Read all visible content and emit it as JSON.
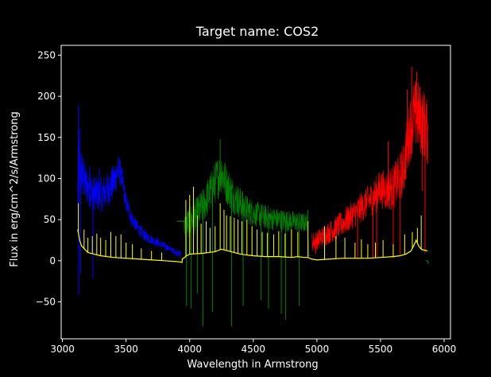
{
  "chart_data": {
    "type": "line",
    "title": "Target name: COS2",
    "xlabel": "Wavelength in Armstrong",
    "ylabel": "Flux in erg/cm^2/s/Armstrong",
    "xlim": [
      2990,
      6050
    ],
    "ylim": [
      -95,
      262
    ],
    "grid": false,
    "legend": "none",
    "xticks": [
      3000,
      3500,
      4000,
      4500,
      5000,
      5500,
      6000
    ],
    "yticks": [
      -50,
      0,
      50,
      100,
      150,
      200,
      250
    ],
    "background": "#000000",
    "axes_color": "#ffffff",
    "series": [
      {
        "color": "#0000ff",
        "style": "noisy",
        "x": [
          3120,
          3130,
          3150,
          3200,
          3250,
          3300,
          3350,
          3400,
          3430,
          3450,
          3470,
          3500,
          3550,
          3600,
          3650,
          3700,
          3750,
          3800,
          3850,
          3900,
          3930
        ],
        "y": [
          80,
          115,
          105,
          88,
          82,
          80,
          85,
          95,
          108,
          110,
          98,
          70,
          50,
          38,
          30,
          26,
          22,
          18,
          14,
          10,
          8
        ],
        "noise": [
          55,
          45,
          30,
          22,
          22,
          22,
          22,
          22,
          22,
          18,
          15,
          12,
          10,
          8,
          7,
          6,
          5,
          5,
          4,
          4,
          4
        ],
        "spikes": [
          [
            3125,
            188
          ],
          [
            3128,
            -42
          ],
          [
            3135,
            160
          ],
          [
            3142,
            -15
          ],
          [
            3215,
            115
          ],
          [
            3240,
            -22
          ],
          [
            3290,
            112
          ],
          [
            3400,
            92
          ]
        ]
      },
      {
        "color": "#008000",
        "style": "noisy",
        "x": [
          3945,
          3955,
          3960,
          4000,
          4050,
          4100,
          4150,
          4200,
          4250,
          4270,
          4300,
          4350,
          4400,
          4450,
          4500,
          4600,
          4700,
          4800,
          4900,
          4930,
          4935,
          4950
        ],
        "y": [
          48,
          48,
          40,
          48,
          55,
          65,
          80,
          95,
          110,
          100,
          90,
          78,
          70,
          62,
          58,
          53,
          50,
          48,
          46,
          46,
          6,
          6
        ],
        "noise": [
          0,
          0,
          18,
          20,
          22,
          22,
          24,
          26,
          28,
          26,
          24,
          22,
          20,
          18,
          16,
          15,
          14,
          13,
          12,
          10,
          0,
          0
        ],
        "spikes": [
          [
            3975,
            -55
          ],
          [
            4010,
            -58
          ],
          [
            4060,
            -40
          ],
          [
            4105,
            -80
          ],
          [
            4180,
            -62
          ],
          [
            4240,
            148
          ],
          [
            4330,
            -80
          ],
          [
            4420,
            -55
          ],
          [
            4560,
            -48
          ],
          [
            4620,
            -58
          ],
          [
            4720,
            -65
          ],
          [
            4755,
            -72
          ],
          [
            4860,
            -55
          ],
          [
            4930,
            62
          ]
        ]
      },
      {
        "color": "#ff0000",
        "style": "noisy",
        "x": [
          4960,
          5000,
          5050,
          5100,
          5150,
          5200,
          5250,
          5300,
          5350,
          5400,
          5450,
          5500,
          5550,
          5600,
          5650,
          5680,
          5700,
          5720,
          5740,
          5760,
          5780,
          5800,
          5820,
          5840,
          5860,
          5875
        ],
        "y": [
          22,
          25,
          30,
          35,
          40,
          45,
          52,
          58,
          65,
          72,
          78,
          88,
          85,
          90,
          100,
          112,
          130,
          150,
          165,
          175,
          178,
          175,
          170,
          168,
          160,
          150
        ],
        "noise": [
          12,
          12,
          13,
          14,
          15,
          16,
          17,
          18,
          19,
          20,
          22,
          24,
          25,
          28,
          30,
          32,
          35,
          38,
          40,
          42,
          44,
          44,
          44,
          42,
          40,
          38
        ],
        "spikes": [
          [
            4990,
            8
          ],
          [
            5320,
            2
          ],
          [
            5385,
            85
          ],
          [
            5440,
            2
          ],
          [
            5470,
            5
          ],
          [
            5560,
            145
          ],
          [
            5600,
            3
          ],
          [
            5655,
            8
          ],
          [
            5710,
            208
          ],
          [
            5745,
            236
          ],
          [
            5785,
            230
          ],
          [
            5830,
            85
          ],
          [
            5850,
            10
          ]
        ]
      },
      {
        "color": "#ffff00",
        "style": "baseline",
        "x": [
          3120,
          3135,
          3150,
          3200,
          3250,
          3300,
          3400,
          3500,
          3600,
          3700,
          3800,
          3900,
          3940,
          3942,
          3960,
          3975,
          4000,
          4100,
          4200,
          4250,
          4300,
          4350,
          4400,
          4500,
          4600,
          4700,
          4800,
          4850,
          4900,
          4930,
          4960,
          5000,
          5100,
          5200,
          5300,
          5400,
          5500,
          5600,
          5650,
          5700,
          5740,
          5760,
          5780,
          5800,
          5820,
          5840,
          5870
        ],
        "y": [
          38,
          25,
          18,
          10,
          8,
          6,
          4,
          3,
          2,
          1,
          0,
          -1,
          -2,
          2,
          4,
          6,
          8,
          9,
          11,
          14,
          12,
          10,
          8,
          6,
          5,
          5,
          4,
          5,
          4,
          4,
          2,
          1,
          2,
          3,
          3,
          3,
          4,
          5,
          6,
          8,
          12,
          18,
          25,
          18,
          14,
          13,
          12
        ],
        "lines": [
          [
            3125,
            70
          ],
          [
            3170,
            38
          ],
          [
            3200,
            28
          ],
          [
            3235,
            30
          ],
          [
            3270,
            33
          ],
          [
            3300,
            28
          ],
          [
            3340,
            25
          ],
          [
            3380,
            35
          ],
          [
            3420,
            30
          ],
          [
            3460,
            32
          ],
          [
            3500,
            22
          ],
          [
            3550,
            20
          ],
          [
            3620,
            15
          ],
          [
            3700,
            12
          ],
          [
            3780,
            10
          ],
          [
            3970,
            74
          ],
          [
            4000,
            80
          ],
          [
            4030,
            90
          ],
          [
            4060,
            55
          ],
          [
            4090,
            45
          ],
          [
            4130,
            48
          ],
          [
            4160,
            40
          ],
          [
            4200,
            42
          ],
          [
            4240,
            70
          ],
          [
            4270,
            62
          ],
          [
            4290,
            55
          ],
          [
            4320,
            54
          ],
          [
            4350,
            52
          ],
          [
            4380,
            50
          ],
          [
            4410,
            48
          ],
          [
            4450,
            50
          ],
          [
            4490,
            42
          ],
          [
            4530,
            38
          ],
          [
            4570,
            35
          ],
          [
            4610,
            34
          ],
          [
            4660,
            32
          ],
          [
            4700,
            36
          ],
          [
            4750,
            33
          ],
          [
            4800,
            38
          ],
          [
            4850,
            35
          ],
          [
            4930,
            48
          ],
          [
            5060,
            42
          ],
          [
            5150,
            30
          ],
          [
            5220,
            28
          ],
          [
            5300,
            22
          ],
          [
            5350,
            26
          ],
          [
            5400,
            20
          ],
          [
            5460,
            22
          ],
          [
            5520,
            25
          ],
          [
            5600,
            20
          ],
          [
            5690,
            32
          ],
          [
            5750,
            35
          ],
          [
            5790,
            40
          ],
          [
            5820,
            55
          ]
        ]
      },
      {
        "color": "#008000",
        "style": "baseline",
        "x": [
          3900,
          3940,
          3945,
          3955
        ],
        "y": [
          48,
          48,
          48,
          48
        ],
        "lines": []
      },
      {
        "color": "#008000",
        "style": "baseline",
        "x": [
          5855,
          5870,
          5875,
          5880
        ],
        "y": [
          0,
          0,
          -3,
          -3
        ],
        "lines": []
      }
    ]
  }
}
